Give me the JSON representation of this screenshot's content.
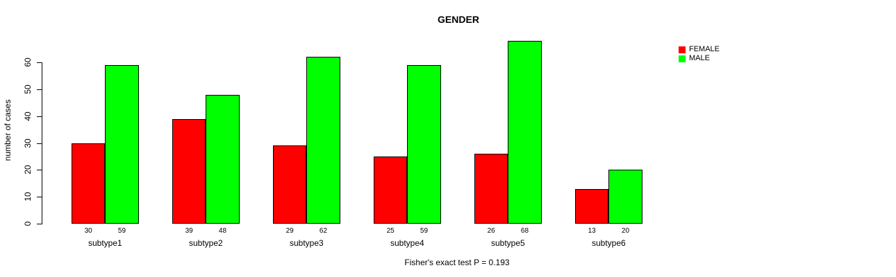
{
  "chart_data": {
    "type": "bar",
    "title": "GENDER",
    "ylabel": "number of cases",
    "xlabel": "",
    "caption": "Fisher's exact test P = 0.193",
    "categories": [
      "subtype1",
      "subtype2",
      "subtype3",
      "subtype4",
      "subtype5",
      "subtype6"
    ],
    "series": [
      {
        "name": "FEMALE",
        "color": "#ff0000",
        "values": [
          30,
          39,
          29,
          25,
          26,
          13
        ]
      },
      {
        "name": "MALE",
        "color": "#00ff00",
        "values": [
          59,
          48,
          62,
          59,
          68,
          20
        ]
      }
    ],
    "yticks": [
      0,
      10,
      20,
      30,
      40,
      50,
      60
    ],
    "ylim": [
      0,
      68
    ],
    "grid": false,
    "legend_position": "right",
    "bar_border_color": "#000000",
    "value_labels_shown": true
  }
}
